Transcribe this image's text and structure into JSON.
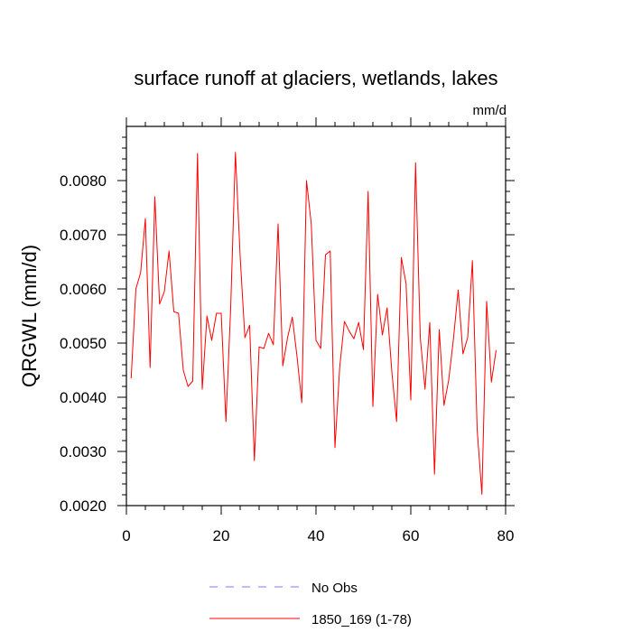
{
  "chart_data": {
    "type": "line",
    "title": "surface runoff at glaciers, wetlands, lakes",
    "units": "mm/d",
    "ylabel": "QRGWL  (mm/d)",
    "xlabel": "",
    "xlim": [
      0,
      80
    ],
    "ylim": [
      0.002,
      0.009
    ],
    "x_ticks": [
      0,
      20,
      40,
      60,
      80
    ],
    "x_tick_labels": [
      "0",
      "20",
      "40",
      "60",
      "80"
    ],
    "y_ticks": [
      0.002,
      0.003,
      0.004,
      0.005,
      0.006,
      0.007,
      0.008
    ],
    "y_tick_labels": [
      "0.0020",
      "0.0030",
      "0.0040",
      "0.0050",
      "0.0060",
      "0.0070",
      "0.0080"
    ],
    "grid": false,
    "legend_position": "bottom",
    "series": [
      {
        "name": "No Obs",
        "color": "#7a7aff",
        "style": "dashed",
        "x": [],
        "values": []
      },
      {
        "name": "1850_169 (1-78)",
        "color": "#ff0000",
        "style": "solid",
        "x": [
          1,
          2,
          3,
          4,
          5,
          6,
          7,
          8,
          9,
          10,
          11,
          12,
          13,
          14,
          15,
          16,
          17,
          18,
          19,
          20,
          21,
          22,
          23,
          24,
          25,
          26,
          27,
          28,
          29,
          30,
          31,
          32,
          33,
          34,
          35,
          36,
          37,
          38,
          39,
          40,
          41,
          42,
          43,
          44,
          45,
          46,
          47,
          48,
          49,
          50,
          51,
          52,
          53,
          54,
          55,
          56,
          57,
          58,
          59,
          60,
          61,
          62,
          63,
          64,
          65,
          66,
          67,
          68,
          69,
          70,
          71,
          72,
          73,
          74,
          75,
          76,
          77,
          78
        ],
        "values": [
          0.00435,
          0.006,
          0.0063,
          0.0073,
          0.00455,
          0.0077,
          0.00572,
          0.00595,
          0.0067,
          0.00558,
          0.00555,
          0.0045,
          0.0042,
          0.0043,
          0.0085,
          0.00415,
          0.0055,
          0.00505,
          0.00555,
          0.00555,
          0.00355,
          0.00565,
          0.00852,
          0.0066,
          0.0051,
          0.00533,
          0.00283,
          0.00493,
          0.0049,
          0.00518,
          0.00497,
          0.0072,
          0.00458,
          0.0051,
          0.00548,
          0.00475,
          0.0039,
          0.008,
          0.0072,
          0.00505,
          0.0049,
          0.00663,
          0.0067,
          0.00307,
          0.00455,
          0.0054,
          0.00522,
          0.00508,
          0.00538,
          0.00488,
          0.0078,
          0.00383,
          0.0059,
          0.00515,
          0.00565,
          0.00447,
          0.00355,
          0.00658,
          0.0061,
          0.00395,
          0.00833,
          0.0051,
          0.00415,
          0.00538,
          0.00258,
          0.00525,
          0.00385,
          0.00432,
          0.00508,
          0.00598,
          0.0048,
          0.0051,
          0.00652,
          0.0034,
          0.00221,
          0.00577,
          0.00428,
          0.00487
        ]
      }
    ]
  }
}
